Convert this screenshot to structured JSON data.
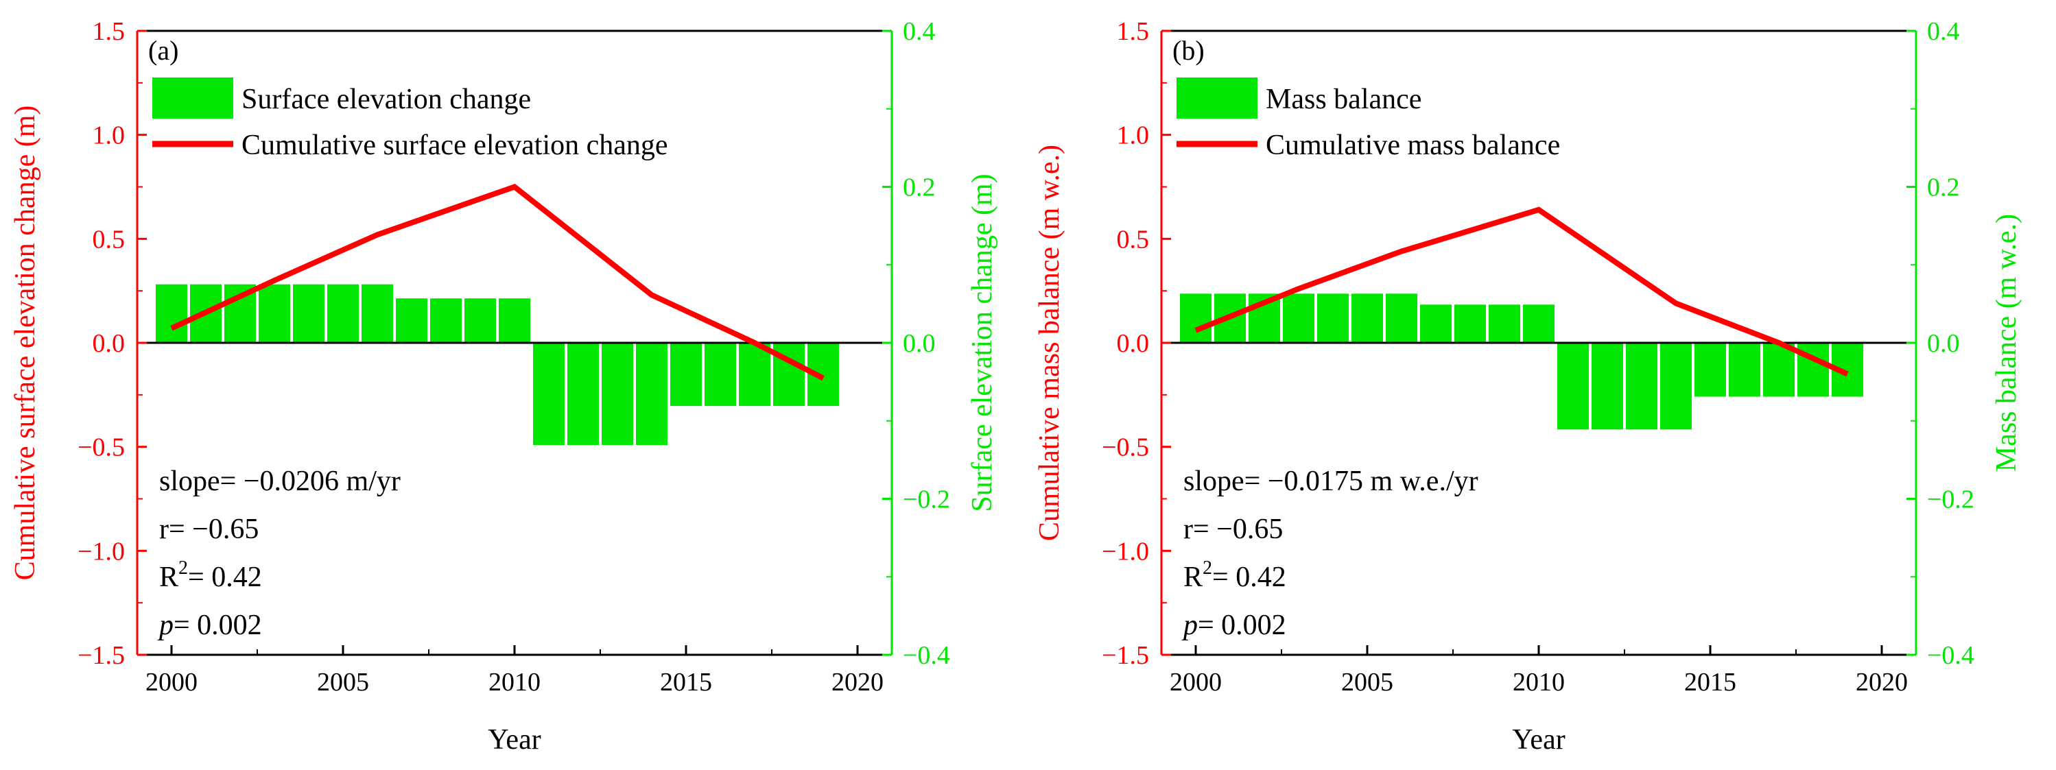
{
  "chart_data": [
    {
      "type": "bar+line",
      "panel_label": "(a)",
      "xlabel": "Year",
      "ylabel_left": "Cumulative surface elevation change (m)",
      "ylabel_right": "Surface elevation change (m)",
      "xlim": [
        1999,
        2021
      ],
      "ylim_left": [
        -1.5,
        1.5
      ],
      "ylim_right": [
        -0.4,
        0.4
      ],
      "x_ticks": [
        "2000",
        "2005",
        "2010",
        "2015",
        "2020"
      ],
      "y_left_ticks": [
        "1.5",
        "1.0",
        "0.5",
        "0.0",
        "−0.5",
        "−1.0",
        "−1.5"
      ],
      "y_right_ticks": [
        "0.4",
        "0.2",
        "0.0",
        "−0.2",
        "−0.4"
      ],
      "legend": [
        "Surface elevation change",
        "Cumulative surface elevation change"
      ],
      "bar_series": {
        "name": "Surface elevation change",
        "x": [
          2000,
          2001,
          2002,
          2003,
          2004,
          2005,
          2006,
          2007,
          2008,
          2009,
          2010,
          2011,
          2012,
          2013,
          2014,
          2015,
          2016,
          2017,
          2018,
          2019
        ],
        "values": [
          0.075,
          0.075,
          0.075,
          0.075,
          0.075,
          0.075,
          0.075,
          0.057,
          0.057,
          0.057,
          0.057,
          -0.131,
          -0.131,
          -0.131,
          -0.131,
          -0.081,
          -0.081,
          -0.081,
          -0.081,
          -0.081
        ]
      },
      "line_series": {
        "name": "Cumulative surface elevation change",
        "x": [
          2000,
          2003,
          2006,
          2010,
          2014,
          2017,
          2019
        ],
        "values": [
          0.07,
          0.3,
          0.52,
          0.75,
          0.23,
          0.0,
          -0.17
        ]
      },
      "stats": {
        "slope": "slope= −0.0206 m/yr",
        "r": "r= −0.65",
        "r2_prefix": "R",
        "r2_sup": "2",
        "r2_value": "= 0.42",
        "p_symbol": "p",
        "p_value": "= 0.002"
      },
      "colors": {
        "bars": "#00e600",
        "line": "#ff0000"
      }
    },
    {
      "type": "bar+line",
      "panel_label": "(b)",
      "xlabel": "Year",
      "ylabel_left": "Cumulative mass balance (m w.e.)",
      "ylabel_right": "Mass balance (m w.e.)",
      "xlim": [
        1999,
        2021
      ],
      "ylim_left": [
        -1.5,
        1.5
      ],
      "ylim_right": [
        -0.4,
        0.4
      ],
      "x_ticks": [
        "2000",
        "2005",
        "2010",
        "2015",
        "2020"
      ],
      "y_left_ticks": [
        "1.5",
        "1.0",
        "0.5",
        "0.0",
        "−0.5",
        "−1.0",
        "−1.5"
      ],
      "y_right_ticks": [
        "0.4",
        "0.2",
        "0.0",
        "−0.2",
        "−0.4"
      ],
      "legend": [
        "Mass balance",
        "Cumulative mass balance"
      ],
      "bar_series": {
        "name": "Mass balance",
        "x": [
          2000,
          2001,
          2002,
          2003,
          2004,
          2005,
          2006,
          2007,
          2008,
          2009,
          2010,
          2011,
          2012,
          2013,
          2014,
          2015,
          2016,
          2017,
          2018,
          2019
        ],
        "values": [
          0.063,
          0.063,
          0.063,
          0.063,
          0.063,
          0.063,
          0.063,
          0.049,
          0.049,
          0.049,
          0.049,
          -0.111,
          -0.111,
          -0.111,
          -0.111,
          -0.069,
          -0.069,
          -0.069,
          -0.069,
          -0.069
        ]
      },
      "line_series": {
        "name": "Cumulative mass balance",
        "x": [
          2000,
          2003,
          2006,
          2010,
          2014,
          2017,
          2019
        ],
        "values": [
          0.06,
          0.26,
          0.44,
          0.64,
          0.19,
          0.0,
          -0.15
        ]
      },
      "stats": {
        "slope": "slope= −0.0175 m w.e./yr",
        "r": "r= −0.65",
        "r2_prefix": "R",
        "r2_sup": "2",
        "r2_value": "= 0.42",
        "p_symbol": "p",
        "p_value": "= 0.002"
      },
      "colors": {
        "bars": "#00e600",
        "line": "#ff0000"
      }
    }
  ]
}
